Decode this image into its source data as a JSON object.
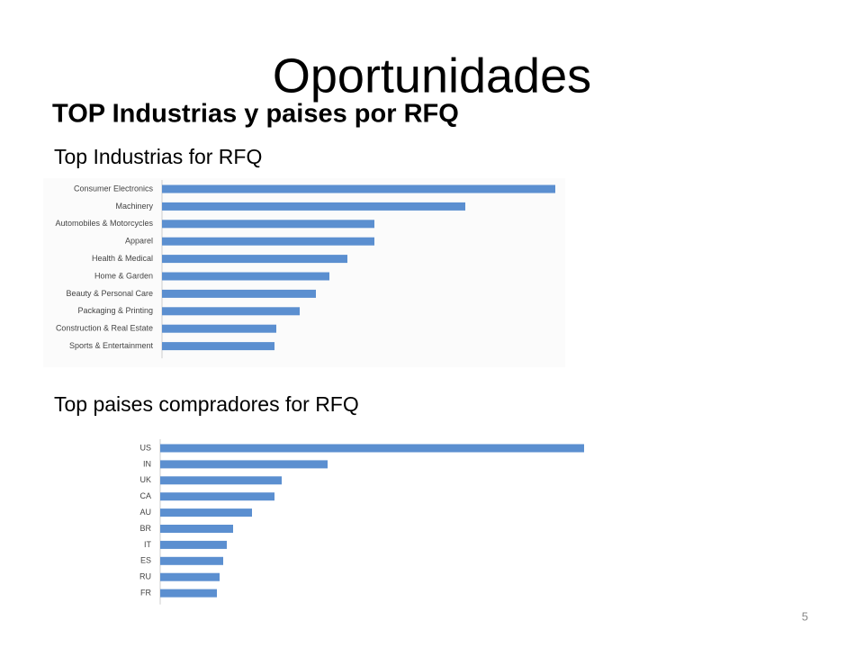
{
  "title": "Oportunidades",
  "subtitle": "TOP Industrias y paises por RFQ",
  "page_number": "5",
  "chart_data": [
    {
      "type": "bar",
      "orientation": "horizontal",
      "title": "Top Industrias for RFQ",
      "color": "#5b8fd0",
      "categories": [
        "Consumer Electronics",
        "Machinery",
        "Automobiles & Motorcycles",
        "Apparel",
        "Health & Medical",
        "Home & Garden",
        "Beauty & Personal Care",
        "Packaging & Printing",
        "Construction & Real Estate",
        "Sports & Entertainment"
      ],
      "values": [
        437,
        337,
        236,
        236,
        206,
        186,
        171,
        153,
        127,
        125
      ]
    },
    {
      "type": "bar",
      "orientation": "horizontal",
      "title": "Top paises compradores for RFQ",
      "color": "#5b8fd0",
      "categories": [
        "US",
        "IN",
        "UK",
        "CA",
        "AU",
        "BR",
        "IT",
        "ES",
        "RU",
        "FR"
      ],
      "values": [
        471,
        186,
        135,
        127,
        102,
        81,
        74,
        70,
        66,
        63
      ]
    }
  ]
}
